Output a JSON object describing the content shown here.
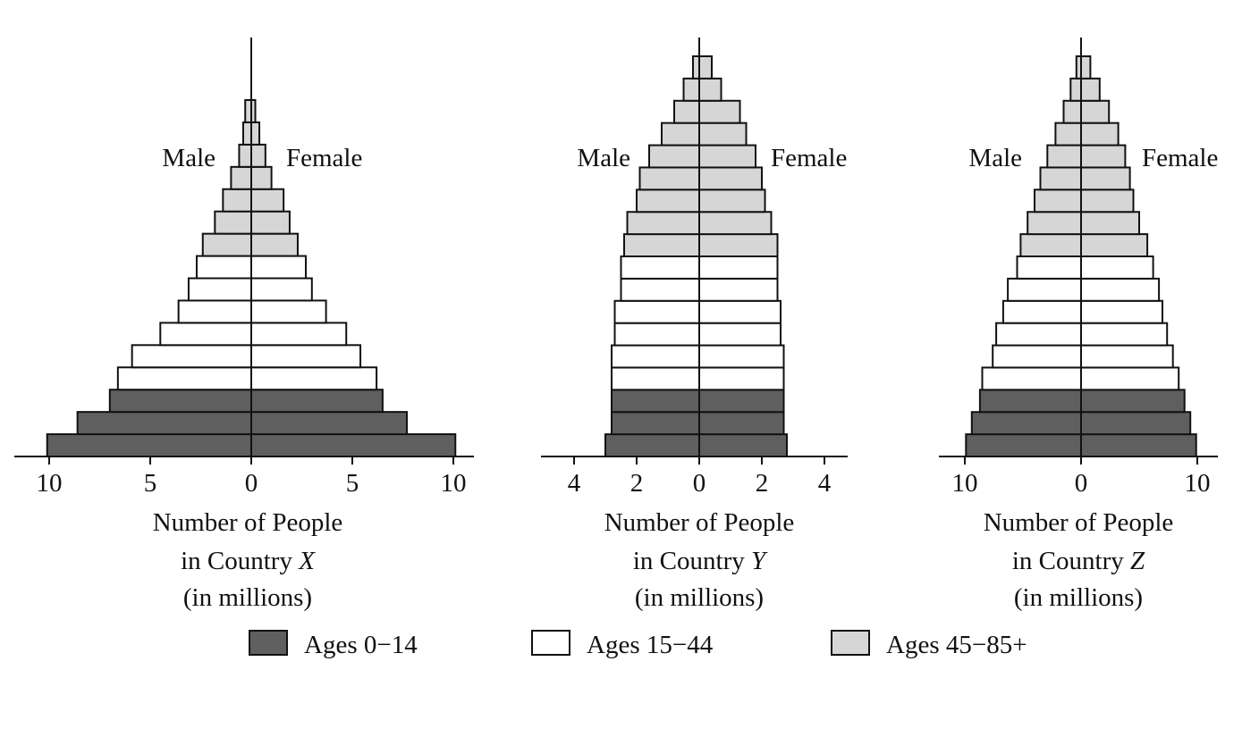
{
  "chart_data": [
    {
      "type": "bar",
      "subtype": "population-pyramid",
      "title_lines": [
        "Number of People",
        "in Country ",
        "(in millions)"
      ],
      "country": "X",
      "left_label": "Male",
      "right_label": "Female",
      "xlim": [
        -10,
        10
      ],
      "ticks": [
        -10,
        -5,
        0,
        5,
        10
      ],
      "tick_labels": [
        "10",
        "5",
        "0",
        "5",
        "10"
      ],
      "cohorts_bottom_to_top": [
        {
          "group": "0-14",
          "male": 10.1,
          "female": 10.1
        },
        {
          "group": "0-14",
          "male": 8.6,
          "female": 7.7
        },
        {
          "group": "0-14",
          "male": 7.0,
          "female": 6.5
        },
        {
          "group": "15-44",
          "male": 6.6,
          "female": 6.2
        },
        {
          "group": "15-44",
          "male": 5.9,
          "female": 5.4
        },
        {
          "group": "15-44",
          "male": 4.5,
          "female": 4.7
        },
        {
          "group": "15-44",
          "male": 3.6,
          "female": 3.7
        },
        {
          "group": "15-44",
          "male": 3.1,
          "female": 3.0
        },
        {
          "group": "15-44",
          "male": 2.7,
          "female": 2.7
        },
        {
          "group": "45-85+",
          "male": 2.4,
          "female": 2.3
        },
        {
          "group": "45-85+",
          "male": 1.8,
          "female": 1.9
        },
        {
          "group": "45-85+",
          "male": 1.4,
          "female": 1.6
        },
        {
          "group": "45-85+",
          "male": 1.0,
          "female": 1.0
        },
        {
          "group": "45-85+",
          "male": 0.6,
          "female": 0.7
        },
        {
          "group": "45-85+",
          "male": 0.4,
          "female": 0.4
        },
        {
          "group": "45-85+",
          "male": 0.3,
          "female": 0.2
        }
      ]
    },
    {
      "type": "bar",
      "subtype": "population-pyramid",
      "title_lines": [
        "Number of People",
        "in Country ",
        "(in millions)"
      ],
      "country": "Y",
      "left_label": "Male",
      "right_label": "Female",
      "xlim": [
        -5,
        5
      ],
      "ticks": [
        -4,
        -2,
        0,
        2,
        4
      ],
      "tick_labels": [
        "4",
        "2",
        "0",
        "2",
        "4"
      ],
      "cohorts_bottom_to_top": [
        {
          "group": "0-14",
          "male": 3.0,
          "female": 2.8
        },
        {
          "group": "0-14",
          "male": 2.8,
          "female": 2.7
        },
        {
          "group": "0-14",
          "male": 2.8,
          "female": 2.7
        },
        {
          "group": "15-44",
          "male": 2.8,
          "female": 2.7
        },
        {
          "group": "15-44",
          "male": 2.8,
          "female": 2.7
        },
        {
          "group": "15-44",
          "male": 2.7,
          "female": 2.6
        },
        {
          "group": "15-44",
          "male": 2.7,
          "female": 2.6
        },
        {
          "group": "15-44",
          "male": 2.5,
          "female": 2.5
        },
        {
          "group": "15-44",
          "male": 2.5,
          "female": 2.5
        },
        {
          "group": "45-85+",
          "male": 2.4,
          "female": 2.5
        },
        {
          "group": "45-85+",
          "male": 2.3,
          "female": 2.3
        },
        {
          "group": "45-85+",
          "male": 2.0,
          "female": 2.1
        },
        {
          "group": "45-85+",
          "male": 1.9,
          "female": 2.0
        },
        {
          "group": "45-85+",
          "male": 1.6,
          "female": 1.8
        },
        {
          "group": "45-85+",
          "male": 1.2,
          "female": 1.5
        },
        {
          "group": "45-85+",
          "male": 0.8,
          "female": 1.3
        },
        {
          "group": "45-85+",
          "male": 0.5,
          "female": 0.7
        },
        {
          "group": "45-85+",
          "male": 0.2,
          "female": 0.4
        }
      ]
    },
    {
      "type": "bar",
      "subtype": "population-pyramid",
      "title_lines": [
        "Number of People",
        "in Country ",
        "(in millions)"
      ],
      "country": "Z",
      "left_label": "Male",
      "right_label": "Female",
      "xlim": [
        -11.5,
        11.5
      ],
      "ticks": [
        -10,
        0,
        10
      ],
      "tick_labels": [
        "10",
        "0",
        "10"
      ],
      "cohorts_bottom_to_top": [
        {
          "group": "0-14",
          "male": 9.9,
          "female": 9.9
        },
        {
          "group": "0-14",
          "male": 9.4,
          "female": 9.4
        },
        {
          "group": "0-14",
          "male": 8.7,
          "female": 8.9
        },
        {
          "group": "15-44",
          "male": 8.5,
          "female": 8.4
        },
        {
          "group": "15-44",
          "male": 7.6,
          "female": 7.9
        },
        {
          "group": "15-44",
          "male": 7.3,
          "female": 7.4
        },
        {
          "group": "15-44",
          "male": 6.7,
          "female": 7.0
        },
        {
          "group": "15-44",
          "male": 6.3,
          "female": 6.7
        },
        {
          "group": "15-44",
          "male": 5.5,
          "female": 6.2
        },
        {
          "group": "45-85+",
          "male": 5.2,
          "female": 5.7
        },
        {
          "group": "45-85+",
          "male": 4.6,
          "female": 5.0
        },
        {
          "group": "45-85+",
          "male": 4.0,
          "female": 4.5
        },
        {
          "group": "45-85+",
          "male": 3.5,
          "female": 4.2
        },
        {
          "group": "45-85+",
          "male": 2.9,
          "female": 3.8
        },
        {
          "group": "45-85+",
          "male": 2.2,
          "female": 3.2
        },
        {
          "group": "45-85+",
          "male": 1.5,
          "female": 2.4
        },
        {
          "group": "45-85+",
          "male": 0.9,
          "female": 1.6
        },
        {
          "group": "45-85+",
          "male": 0.4,
          "female": 0.8
        }
      ]
    }
  ],
  "legend": [
    {
      "key": "0-14",
      "label": "Ages 0−14",
      "color": "#5f5f5f"
    },
    {
      "key": "15-44",
      "label": "Ages 15−44",
      "color": "#ffffff"
    },
    {
      "key": "45-85+",
      "label": "Ages 45−85+",
      "color": "#d6d6d6"
    }
  ],
  "bar_outline_color": "#111111"
}
